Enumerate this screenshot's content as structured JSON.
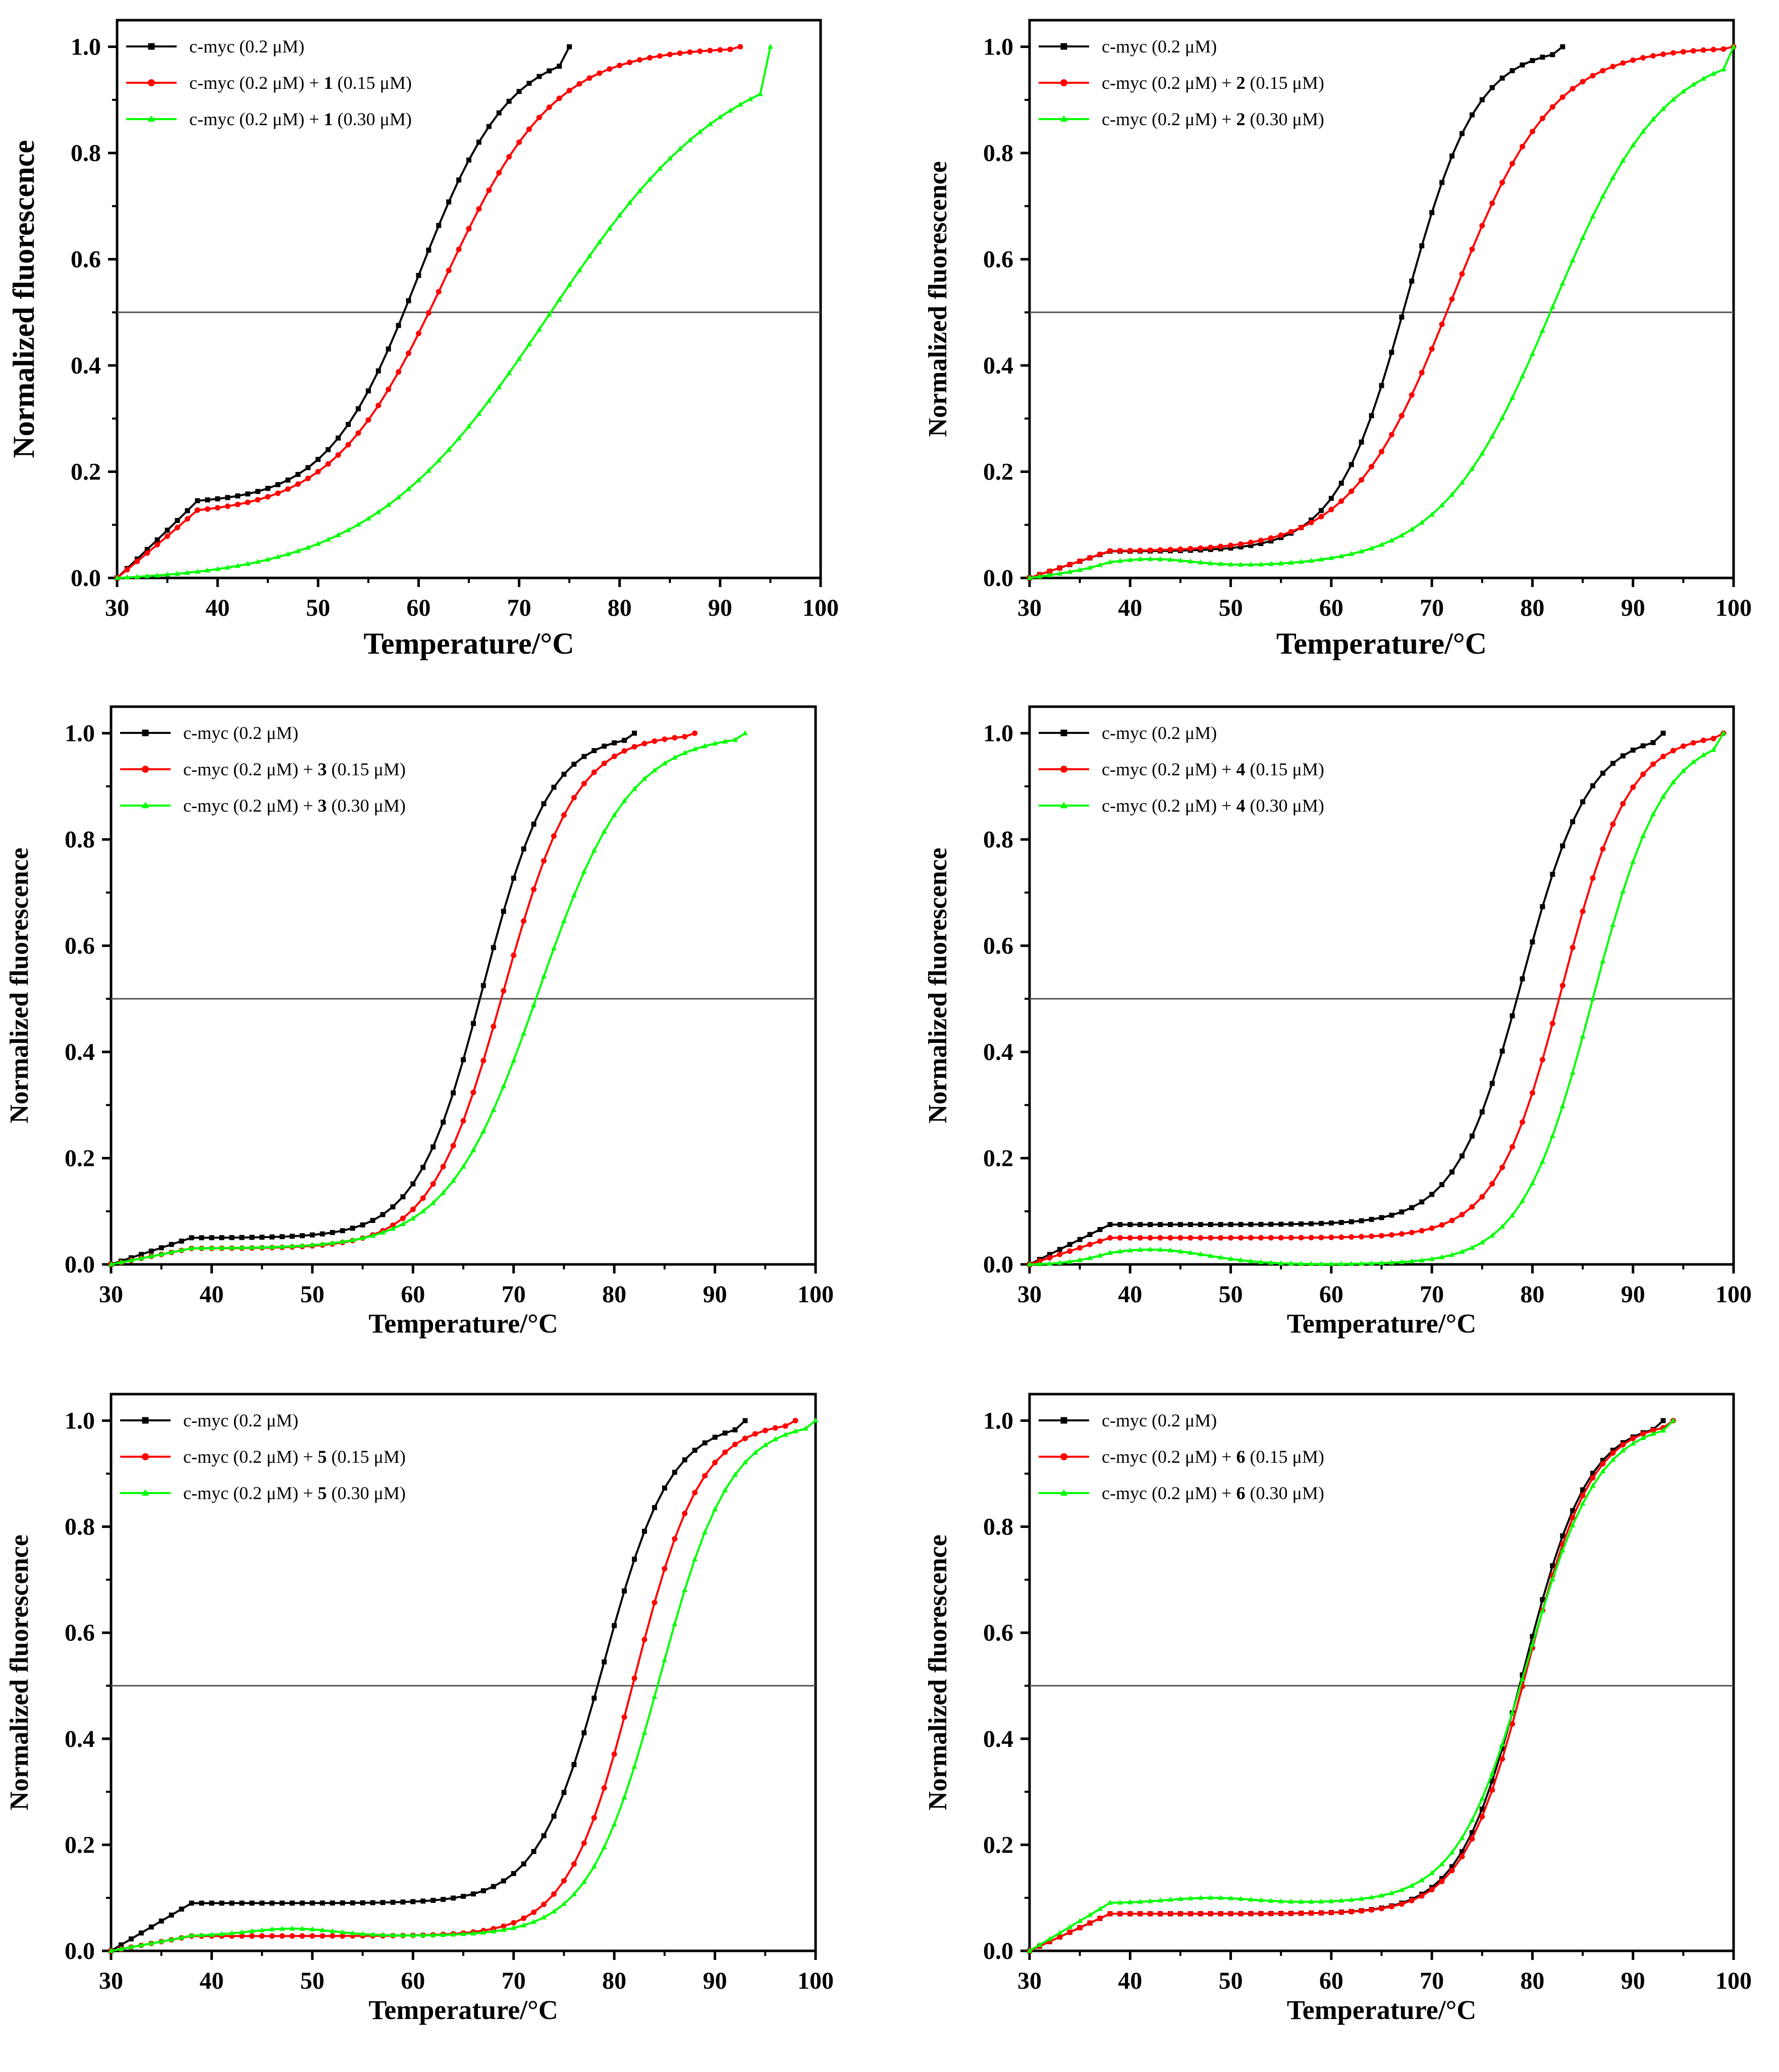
{
  "chart_data": [
    {
      "type": "line",
      "panel": "top-left",
      "xlabel": "Temperature/°C",
      "ylabel": "Normalized fluorescence",
      "xlim": [
        30,
        100
      ],
      "ylim": [
        0,
        1.0
      ],
      "xticks": [
        "30",
        "40",
        "50",
        "60",
        "70",
        "80",
        "90",
        "100"
      ],
      "yticks": [
        "0.0",
        "0.2",
        "0.4",
        "0.6",
        "0.8",
        "1.0"
      ],
      "reference_line_y": 0.5,
      "legend_position": "top-left",
      "series": [
        {
          "name": "c-myc (0.2 μM)",
          "legend_prefix": "c-myc (0.2 μM)",
          "compound": "",
          "legend_suffix": "",
          "color": "#000000",
          "marker": "square",
          "x_end": 75,
          "tm": 60,
          "width": 4.5,
          "pre_level": 0.14,
          "bump_amp": 0,
          "bump_center": 45,
          "bump_width": 6
        },
        {
          "name": "c-myc (0.2 μM) + 1 (0.15 μM)",
          "legend_prefix": "c-myc (0.2 μM) + ",
          "compound": "1",
          "legend_suffix": " (0.15 μM)",
          "color": "#ff0000",
          "marker": "circle",
          "x_end": 92,
          "tm": 62.5,
          "width": 5.5,
          "pre_level": 0.12,
          "bump_amp": 0,
          "bump_center": 45,
          "bump_width": 6
        },
        {
          "name": "c-myc (0.2 μM) + 1 (0.30 μM)",
          "legend_prefix": "c-myc (0.2 μM) + ",
          "compound": "1",
          "legend_suffix": " (0.30 μM)",
          "color": "#00ff00",
          "marker": "triangle",
          "x_end": 95,
          "tm": 73,
          "width": 9,
          "pre_level": 0,
          "bump_amp": 0,
          "bump_center": 45,
          "bump_width": 6
        }
      ]
    },
    {
      "type": "line",
      "panel": "top-right",
      "xlabel": "Temperature/°C",
      "ylabel": "Normalized fluorescence",
      "xlim": [
        30,
        100
      ],
      "ylim": [
        0,
        1.0
      ],
      "xticks": [
        "30",
        "40",
        "50",
        "60",
        "70",
        "80",
        "90",
        "100"
      ],
      "yticks": [
        "0.0",
        "0.2",
        "0.4",
        "0.6",
        "0.8",
        "1.0"
      ],
      "reference_line_y": 0.5,
      "legend_position": "top-left",
      "series": [
        {
          "name": "c-myc (0.2 μM)",
          "legend_prefix": "c-myc (0.2 μM)",
          "compound": "",
          "legend_suffix": "",
          "color": "#000000",
          "marker": "square",
          "x_end": 83,
          "tm": 67.5,
          "width": 3.5,
          "pre_level": 0.05,
          "bump_amp": 0,
          "bump_center": 45,
          "bump_width": 6
        },
        {
          "name": "c-myc (0.2 μM) + 2 (0.15 μM)",
          "legend_prefix": "c-myc (0.2 μM) + ",
          "compound": "2",
          "legend_suffix": " (0.15 μM)",
          "color": "#ff0000",
          "marker": "circle",
          "x_end": 100,
          "tm": 72,
          "width": 5,
          "pre_level": 0.05,
          "bump_amp": 0,
          "bump_center": 45,
          "bump_width": 6
        },
        {
          "name": "c-myc (0.2 μM) + 2 (0.30 μM)",
          "legend_prefix": "c-myc (0.2 μM) + ",
          "compound": "2",
          "legend_suffix": " (0.30 μM)",
          "color": "#00ff00",
          "marker": "triangle",
          "x_end": 100,
          "tm": 82,
          "width": 5.5,
          "pre_level": 0.02,
          "bump_amp": 0.015,
          "bump_center": 42,
          "bump_width": 6
        }
      ]
    },
    {
      "type": "line",
      "panel": "middle-left",
      "xlabel": "Temperature/°C",
      "ylabel": "Normalized fluorescence",
      "xlim": [
        30,
        100
      ],
      "ylim": [
        0,
        1.0
      ],
      "xticks": [
        "30",
        "40",
        "50",
        "60",
        "70",
        "80",
        "90",
        "100"
      ],
      "yticks": [
        "0.0",
        "0.2",
        "0.4",
        "0.6",
        "0.8",
        "1.0"
      ],
      "reference_line_y": 0.5,
      "legend_position": "top-left",
      "series": [
        {
          "name": "c-myc (0.2 μM)",
          "legend_prefix": "c-myc (0.2 μM)",
          "compound": "",
          "legend_suffix": "",
          "color": "#000000",
          "marker": "square",
          "x_end": 82,
          "tm": 67,
          "width": 3.3,
          "pre_level": 0.05,
          "bump_amp": 0,
          "bump_center": 45,
          "bump_width": 6
        },
        {
          "name": "c-myc (0.2 μM) + 3 (0.15 μM)",
          "legend_prefix": "c-myc (0.2 μM) + ",
          "compound": "3",
          "legend_suffix": " (0.15 μM)",
          "color": "#ff0000",
          "marker": "circle",
          "x_end": 88,
          "tm": 69,
          "width": 3.6,
          "pre_level": 0.03,
          "bump_amp": 0,
          "bump_center": 45,
          "bump_width": 6
        },
        {
          "name": "c-myc (0.2 μM) + 3 (0.30 μM)",
          "legend_prefix": "c-myc (0.2 μM) + ",
          "compound": "3",
          "legend_suffix": " (0.30 μM)",
          "color": "#00ff00",
          "marker": "triangle",
          "x_end": 93,
          "tm": 72.5,
          "width": 4.5,
          "pre_level": 0.03,
          "bump_amp": 0,
          "bump_center": 45,
          "bump_width": 6
        }
      ]
    },
    {
      "type": "line",
      "panel": "middle-right",
      "xlabel": "Temperature/°C",
      "ylabel": "Normalized fluorescence",
      "xlim": [
        30,
        100
      ],
      "ylim": [
        0,
        1.0
      ],
      "xticks": [
        "30",
        "40",
        "50",
        "60",
        "70",
        "80",
        "90",
        "100"
      ],
      "yticks": [
        "0.0",
        "0.2",
        "0.4",
        "0.6",
        "0.8",
        "1.0"
      ],
      "reference_line_y": 0.5,
      "legend_position": "top-left",
      "series": [
        {
          "name": "c-myc (0.2 μM)",
          "legend_prefix": "c-myc (0.2 μM)",
          "compound": "",
          "legend_suffix": "",
          "color": "#000000",
          "marker": "square",
          "x_end": 93,
          "tm": 79,
          "width": 3.3,
          "pre_level": 0.075,
          "bump_amp": 0,
          "bump_center": 45,
          "bump_width": 6
        },
        {
          "name": "c-myc (0.2 μM) + 4 (0.15 μM)",
          "legend_prefix": "c-myc (0.2 μM) + ",
          "compound": "4",
          "legend_suffix": " (0.15 μM)",
          "color": "#ff0000",
          "marker": "circle",
          "x_end": 99,
          "tm": 83,
          "width": 3.3,
          "pre_level": 0.05,
          "bump_amp": 0,
          "bump_center": 45,
          "bump_width": 6
        },
        {
          "name": "c-myc (0.2 μM) + 4 (0.30 μM)",
          "legend_prefix": "c-myc (0.2 μM) + ",
          "compound": "4",
          "legend_suffix": " (0.30 μM)",
          "color": "#00ff00",
          "marker": "triangle",
          "x_end": 99,
          "tm": 86,
          "width": 3.5,
          "pre_level": 0.0,
          "bump_amp": 0.028,
          "bump_center": 42,
          "bump_width": 8
        }
      ]
    },
    {
      "type": "line",
      "panel": "bottom-left",
      "xlabel": "Temperature/°C",
      "ylabel": "Normalized fluorescence",
      "xlim": [
        30,
        100
      ],
      "ylim": [
        0,
        1.0
      ],
      "xticks": [
        "30",
        "40",
        "50",
        "60",
        "70",
        "80",
        "90",
        "100"
      ],
      "yticks": [
        "0.0",
        "0.2",
        "0.4",
        "0.6",
        "0.8",
        "1.0"
      ],
      "reference_line_y": 0.5,
      "legend_position": "top-left",
      "series": [
        {
          "name": "c-myc (0.2 μM)",
          "legend_prefix": "c-myc (0.2 μM)",
          "compound": "",
          "legend_suffix": "",
          "color": "#000000",
          "marker": "square",
          "x_end": 93,
          "tm": 79,
          "width": 3.3,
          "pre_level": 0.09,
          "bump_amp": 0,
          "bump_center": 45,
          "bump_width": 6
        },
        {
          "name": "c-myc (0.2 μM) + 5 (0.15 μM)",
          "legend_prefix": "c-myc (0.2 μM) + ",
          "compound": "5",
          "legend_suffix": " (0.15 μM)",
          "color": "#ff0000",
          "marker": "circle",
          "x_end": 98,
          "tm": 82,
          "width": 3.3,
          "pre_level": 0.028,
          "bump_amp": 0,
          "bump_center": 45,
          "bump_width": 6
        },
        {
          "name": "c-myc (0.2 μM) + 5 (0.30 μM)",
          "legend_prefix": "c-myc (0.2 μM) + ",
          "compound": "5",
          "legend_suffix": " (0.30 μM)",
          "color": "#00ff00",
          "marker": "triangle",
          "x_end": 100,
          "tm": 84.5,
          "width": 3.5,
          "pre_level": 0.028,
          "bump_amp": 0.014,
          "bump_center": 48,
          "bump_width": 6
        }
      ]
    },
    {
      "type": "line",
      "panel": "bottom-right",
      "xlabel": "Temperature/°C",
      "ylabel": "Normalized fluorescence",
      "xlim": [
        30,
        100
      ],
      "ylim": [
        0,
        1.0
      ],
      "xticks": [
        "30",
        "40",
        "50",
        "60",
        "70",
        "80",
        "90",
        "100"
      ],
      "yticks": [
        "0.0",
        "0.2",
        "0.4",
        "0.6",
        "0.8",
        "1.0"
      ],
      "reference_line_y": 0.5,
      "legend_position": "top-left",
      "series": [
        {
          "name": "c-myc (0.2 μM)",
          "legend_prefix": "c-myc (0.2 μM)",
          "compound": "",
          "legend_suffix": "",
          "color": "#000000",
          "marker": "square",
          "x_end": 93,
          "tm": 79.2,
          "width": 3.2,
          "pre_level": 0.07,
          "bump_amp": 0,
          "bump_center": 45,
          "bump_width": 6
        },
        {
          "name": "c-myc (0.2 μM) + 6 (0.15 μM)",
          "legend_prefix": "c-myc (0.2 μM)  + ",
          "compound": "6",
          "legend_suffix": " (0.15 μM)",
          "color": "#ff0000",
          "marker": "circle",
          "x_end": 94,
          "tm": 79.5,
          "width": 3.2,
          "pre_level": 0.07,
          "bump_amp": 0,
          "bump_center": 45,
          "bump_width": 6
        },
        {
          "name": "c-myc (0.2 μM) + 6 (0.30 μM)",
          "legend_prefix": "c-myc (0.2 μM)  + ",
          "compound": "6",
          "legend_suffix": " (0.30 μM)",
          "color": "#00ff00",
          "marker": "triangle",
          "x_end": 94,
          "tm": 79.5,
          "width": 3.5,
          "pre_level": 0.09,
          "bump_amp": 0.01,
          "bump_center": 48,
          "bump_width": 6
        }
      ]
    }
  ]
}
